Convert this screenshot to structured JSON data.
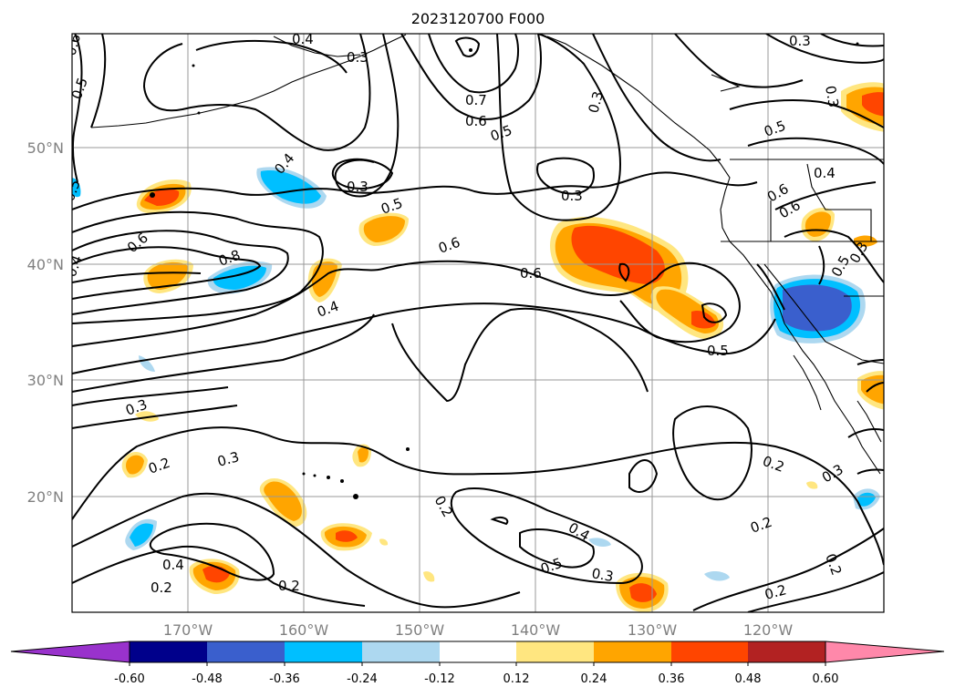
{
  "title": "2023120700 F000",
  "lat_ticks": [
    "50°N",
    "40°N",
    "30°N",
    "20°N"
  ],
  "lon_ticks": [
    "170°W",
    "160°W",
    "150°W",
    "140°W",
    "130°W",
    "120°W"
  ],
  "colorbar": {
    "tick_labels": [
      "-0.60",
      "-0.48",
      "-0.36",
      "-0.24",
      "-0.12",
      "0.12",
      "0.24",
      "0.36",
      "0.48",
      "0.60"
    ],
    "colors": [
      "#9932cc",
      "#00008b",
      "#3a5fcd",
      "#00bfff",
      "#add8f0",
      "#ffffff",
      "#ffe680",
      "#ffa500",
      "#ff4500",
      "#b22222",
      "#ff88aa"
    ]
  },
  "contour_labels": [
    "0.6",
    "0.5",
    "0.4",
    "0.3",
    "0.7",
    "0.6",
    "0.5",
    "0.3",
    "0.3",
    "0.3",
    "0.5",
    "0.6",
    "0.5",
    "0.4",
    "0.4",
    "0.3",
    "0.5",
    "0.6",
    "0.3",
    "0.5",
    "0.6",
    "0.6",
    "0.8",
    "0.4",
    "0.4",
    "0.6",
    "0.5",
    "0.3",
    "0.2",
    "0.3",
    "0.2",
    "0.2",
    "0.4",
    "0.5",
    "0.3",
    "0.4",
    "0.2",
    "0.2",
    "0.2",
    "0.3",
    "0.2",
    "0.2",
    "0.3"
  ],
  "shading_colors": {
    "yellow": "#ffe680",
    "orange": "#ffa500",
    "red": "#ff4500",
    "lightblue": "#add8f0",
    "cyan": "#00bfff",
    "blue": "#3a5fcd"
  }
}
